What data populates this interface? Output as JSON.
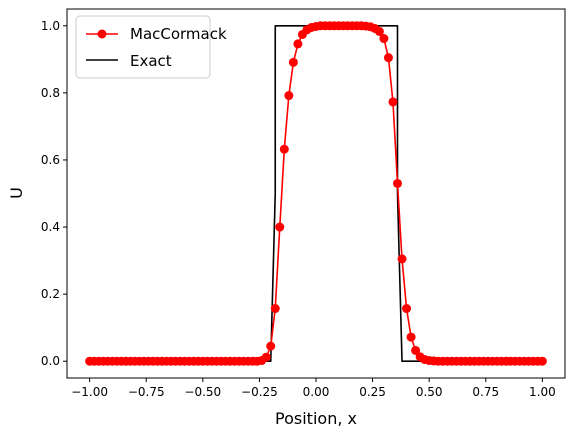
{
  "chart_data": {
    "type": "line",
    "title": "",
    "xlabel": "Position, x",
    "ylabel": "U",
    "xlim": [
      -1.1,
      1.1
    ],
    "ylim": [
      -0.05,
      1.05
    ],
    "xticks": [
      -1.0,
      -0.75,
      -0.5,
      -0.25,
      0.0,
      0.25,
      0.5,
      0.75,
      1.0
    ],
    "xtick_labels": [
      "−1.00",
      "−0.75",
      "−0.50",
      "−0.25",
      "0.00",
      "0.25",
      "0.50",
      "0.75",
      "1.00"
    ],
    "yticks": [
      0.0,
      0.2,
      0.4,
      0.6,
      0.8,
      1.0
    ],
    "ytick_labels": [
      "0.0",
      "0.2",
      "0.4",
      "0.6",
      "0.8",
      "1.0"
    ],
    "grid": false,
    "legend_position": "upper left",
    "series": [
      {
        "name": "MacCormack",
        "color": "#ff0000",
        "marker": "circle",
        "x": [
          -1.0,
          -0.98,
          -0.96,
          -0.94,
          -0.92,
          -0.9,
          -0.88,
          -0.86,
          -0.84,
          -0.82,
          -0.8,
          -0.78,
          -0.76,
          -0.74,
          -0.72,
          -0.7,
          -0.68,
          -0.66,
          -0.64,
          -0.62,
          -0.6,
          -0.58,
          -0.56,
          -0.54,
          -0.52,
          -0.5,
          -0.48,
          -0.46,
          -0.44,
          -0.42,
          -0.4,
          -0.38,
          -0.36,
          -0.34,
          -0.32,
          -0.3,
          -0.28,
          -0.26,
          -0.24,
          -0.22,
          -0.2,
          -0.18,
          -0.16,
          -0.14,
          -0.12,
          -0.1,
          -0.08,
          -0.06,
          -0.04,
          -0.02,
          0.0,
          0.02,
          0.04,
          0.06,
          0.08,
          0.1,
          0.12,
          0.14,
          0.16,
          0.18,
          0.2,
          0.22,
          0.24,
          0.26,
          0.28,
          0.3,
          0.32,
          0.34,
          0.36,
          0.38,
          0.4,
          0.42,
          0.44,
          0.46,
          0.48,
          0.5,
          0.52,
          0.54,
          0.56,
          0.58,
          0.6,
          0.62,
          0.64,
          0.66,
          0.68,
          0.7,
          0.72,
          0.74,
          0.76,
          0.78,
          0.8,
          0.82,
          0.84,
          0.86,
          0.88,
          0.9,
          0.92,
          0.94,
          0.96,
          0.98,
          1.0
        ],
        "y": [
          0,
          0,
          0,
          0,
          0,
          0,
          0,
          0,
          0,
          0,
          0,
          0,
          0,
          0,
          0,
          0,
          0,
          0,
          0,
          0,
          0,
          0,
          0,
          0,
          0,
          0,
          0,
          0,
          0,
          0,
          0,
          0,
          0,
          0,
          0,
          0,
          0,
          0,
          0.002,
          0.012,
          0.045,
          0.157,
          0.4,
          0.632,
          0.792,
          0.891,
          0.946,
          0.974,
          0.988,
          0.995,
          0.998,
          1.0,
          1.0,
          1.0,
          1.0,
          1.0,
          1.0,
          1.0,
          1.0,
          1.0,
          1.0,
          0.999,
          0.997,
          0.992,
          0.983,
          0.962,
          0.905,
          0.773,
          0.53,
          0.305,
          0.157,
          0.072,
          0.032,
          0.013,
          0.005,
          0.002,
          0.001,
          0,
          0,
          0,
          0,
          0,
          0,
          0,
          0,
          0,
          0,
          0,
          0,
          0,
          0,
          0,
          0,
          0,
          0,
          0,
          0,
          0,
          0,
          0,
          0
        ]
      },
      {
        "name": "Exact",
        "color": "#000000",
        "marker": "none",
        "x": [
          -1.0,
          -0.2,
          -0.2,
          -0.18,
          -0.18,
          0.36,
          0.36,
          0.38,
          0.38,
          1.0
        ],
        "y": [
          0,
          0,
          0,
          0.5,
          1,
          1,
          0.5,
          0,
          0,
          0
        ]
      }
    ]
  }
}
